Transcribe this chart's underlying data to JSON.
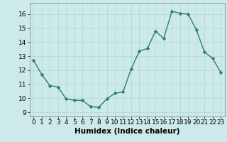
{
  "x": [
    0,
    1,
    2,
    3,
    4,
    5,
    6,
    7,
    8,
    9,
    10,
    11,
    12,
    13,
    14,
    15,
    16,
    17,
    18,
    19,
    20,
    21,
    22,
    23
  ],
  "y": [
    12.7,
    11.7,
    10.9,
    10.8,
    9.95,
    9.85,
    9.85,
    9.4,
    9.35,
    9.95,
    10.35,
    10.45,
    12.1,
    13.35,
    13.55,
    14.8,
    14.25,
    16.2,
    16.05,
    16.0,
    14.9,
    13.3,
    12.85,
    11.85
  ],
  "xlabel": "Humidex (Indice chaleur)",
  "xlim": [
    -0.5,
    23.5
  ],
  "ylim": [
    8.7,
    16.8
  ],
  "yticks": [
    9,
    10,
    11,
    12,
    13,
    14,
    15,
    16
  ],
  "xticks": [
    0,
    1,
    2,
    3,
    4,
    5,
    6,
    7,
    8,
    9,
    10,
    11,
    12,
    13,
    14,
    15,
    16,
    17,
    18,
    19,
    20,
    21,
    22,
    23
  ],
  "line_color": "#2e7d6e",
  "marker_color": "#2e7d6e",
  "bg_color": "#cceaea",
  "grid_color": "#b8d8d8",
  "xlabel_fontsize": 7.5,
  "tick_fontsize": 6.5,
  "line_width": 1.0,
  "marker_size": 2.5
}
